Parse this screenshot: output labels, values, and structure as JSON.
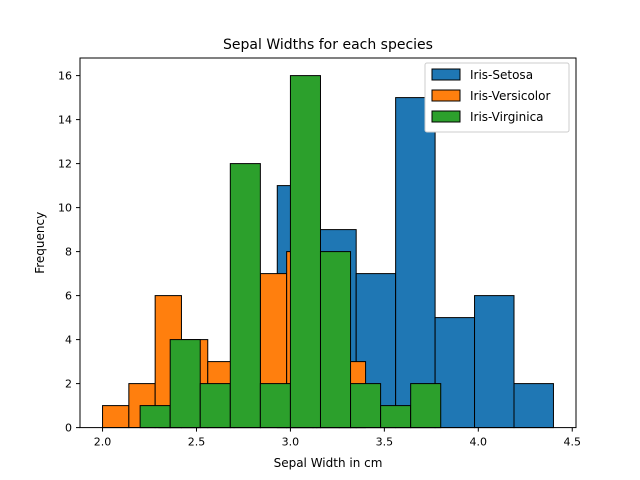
{
  "chart_data": {
    "type": "bar",
    "title": "Sepal Widths for each species",
    "xlabel": "Sepal Width in cm",
    "ylabel": "Frequency",
    "xlim": [
      1.88,
      4.52
    ],
    "ylim": [
      0,
      16.8
    ],
    "xticks": [
      2.0,
      2.5,
      3.0,
      3.5,
      4.0,
      4.5
    ],
    "xtick_labels": [
      "2.0",
      "2.5",
      "3.0",
      "3.5",
      "4.0",
      "4.5"
    ],
    "yticks": [
      0,
      2,
      4,
      6,
      8,
      10,
      12,
      14,
      16
    ],
    "ytick_labels": [
      "0",
      "2",
      "4",
      "6",
      "8",
      "10",
      "12",
      "14",
      "16"
    ],
    "grid": false,
    "legend_position": "top-right",
    "series": [
      {
        "name": "Iris-Setosa",
        "color": "#1f77b4",
        "bins": [
          2.3,
          2.51,
          2.72,
          2.93,
          3.14,
          3.35,
          3.56,
          3.77,
          3.98,
          4.19,
          4.4
        ],
        "counts": [
          1,
          0,
          0,
          11,
          9,
          7,
          15,
          5,
          6,
          2,
          2
        ]
      },
      {
        "name": "Iris-Versicolor",
        "color": "#ff7f0e",
        "bins": [
          2.0,
          2.14,
          2.28,
          2.42,
          2.56,
          2.7,
          2.84,
          2.98,
          3.12,
          3.26,
          3.4
        ],
        "counts": [
          1,
          2,
          6,
          4,
          3,
          7,
          7,
          8,
          5,
          3,
          3
        ]
      },
      {
        "name": "Iris-Virginica",
        "color": "#2ca02c",
        "bins": [
          2.2,
          2.36,
          2.52,
          2.68,
          2.84,
          3.0,
          3.16,
          3.32,
          3.48,
          3.64,
          3.8
        ],
        "counts": [
          1,
          4,
          2,
          12,
          2,
          16,
          8,
          2,
          1,
          2
        ]
      }
    ]
  }
}
